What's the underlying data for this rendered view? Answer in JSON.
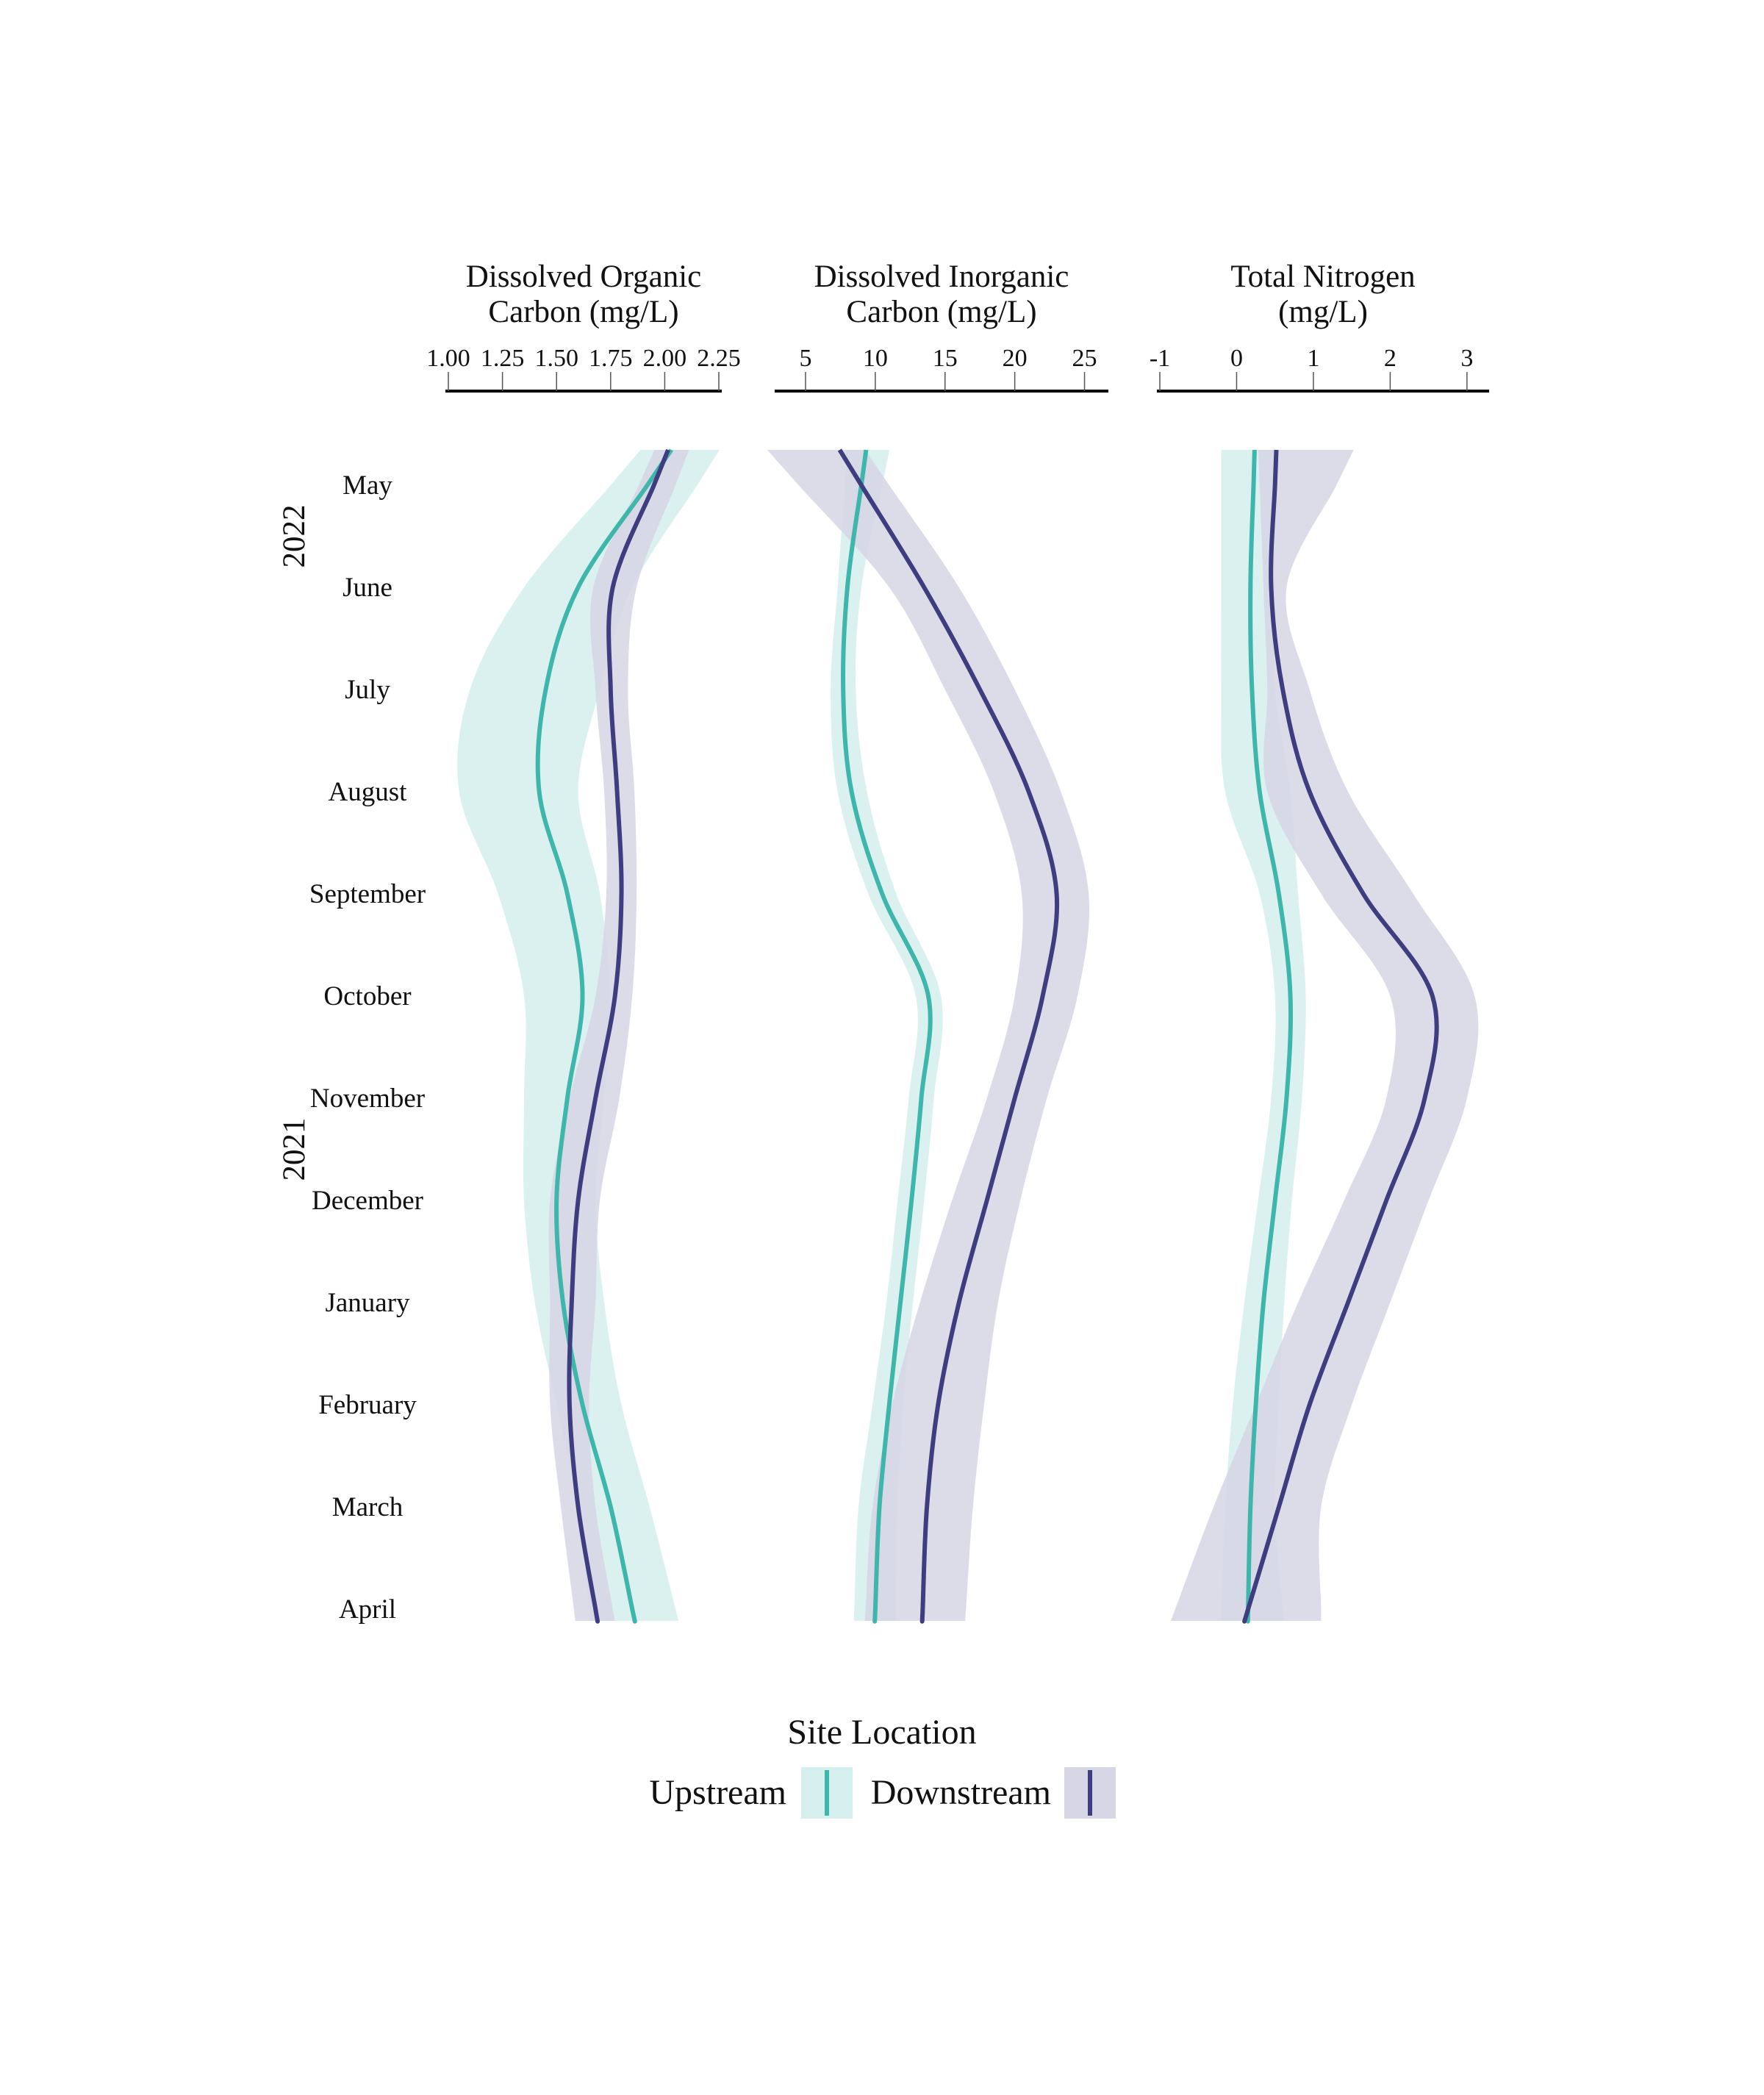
{
  "chart_data": {
    "type": "line",
    "orientation": "vertical-time",
    "y_axis": {
      "months_top_to_bottom": [
        "May",
        "June",
        "July",
        "August",
        "September",
        "October",
        "November",
        "December",
        "January",
        "February",
        "March",
        "April"
      ],
      "year_labels": [
        {
          "label": "2022",
          "from": "May",
          "to": "June"
        },
        {
          "label": "2021",
          "from": "November",
          "to": "December"
        }
      ]
    },
    "legend": {
      "title": "Site Location",
      "placement": "bottom",
      "entries": [
        {
          "key": "upstream",
          "label": "Upstream",
          "line_color": "#3fb6ac",
          "band_color": "#d4efed"
        },
        {
          "key": "downstream",
          "label": "Downstream",
          "line_color": "#3e3d80",
          "band_color": "#d6d6e4"
        }
      ]
    },
    "panels": [
      {
        "id": "doc",
        "title_lines": [
          "Dissolved Organic",
          "Carbon (mg/L)"
        ],
        "xlim": [
          1.0,
          2.25
        ],
        "ticks": [
          1.0,
          1.25,
          1.5,
          1.75,
          2.0,
          2.25
        ],
        "tick_labels": [
          "1.00",
          "1.25",
          "1.50",
          "1.75",
          "2.00",
          "2.25"
        ],
        "series": [
          {
            "key": "upstream",
            "values": [
              1.92,
              1.6,
              1.45,
              1.42,
              1.55,
              1.62,
              1.55,
              1.5,
              1.53,
              1.62,
              1.75,
              1.85
            ],
            "lower": [
              1.75,
              1.35,
              1.1,
              1.05,
              1.23,
              1.35,
              1.35,
              1.35,
              1.4,
              1.5,
              1.6,
              1.65
            ],
            "upper": [
              2.15,
              1.85,
              1.7,
              1.6,
              1.7,
              1.75,
              1.72,
              1.68,
              1.72,
              1.8,
              1.93,
              2.05
            ]
          },
          {
            "key": "downstream",
            "values": [
              1.95,
              1.76,
              1.75,
              1.78,
              1.8,
              1.77,
              1.68,
              1.6,
              1.57,
              1.56,
              1.6,
              1.68
            ],
            "lower": [
              1.88,
              1.67,
              1.68,
              1.72,
              1.73,
              1.68,
              1.56,
              1.47,
              1.47,
              1.47,
              1.52,
              1.58
            ],
            "upper": [
              2.05,
              1.87,
              1.83,
              1.86,
              1.87,
              1.85,
              1.79,
              1.7,
              1.68,
              1.65,
              1.68,
              1.76
            ]
          }
        ]
      },
      {
        "id": "dic",
        "title_lines": [
          "Dissolved Inorganic",
          "Carbon (mg/L)"
        ],
        "xlim": [
          3,
          26.5
        ],
        "ticks": [
          5,
          10,
          15,
          20,
          25
        ],
        "tick_labels": [
          "5",
          "10",
          "15",
          "20",
          "25"
        ],
        "series": [
          {
            "key": "upstream",
            "values": [
              9.0,
              8.0,
              7.7,
              8.3,
              10.5,
              13.8,
              13.3,
              12.6,
              11.8,
              11.0,
              10.3,
              10.0
            ],
            "lower": [
              7.8,
              7.3,
              6.8,
              7.3,
              9.5,
              12.9,
              12.4,
              11.6,
              10.8,
              9.8,
              8.8,
              8.5
            ],
            "upper": [
              10.5,
              9.0,
              8.6,
              9.4,
              11.5,
              14.7,
              14.2,
              13.5,
              12.7,
              12.0,
              11.6,
              11.5
            ]
          },
          {
            "key": "downstream",
            "values": [
              9.0,
              13.5,
              17.5,
              21.0,
              23.0,
              22.0,
              20.0,
              18.0,
              16.0,
              14.5,
              13.7,
              13.4
            ],
            "lower": [
              4.5,
              11.0,
              15.0,
              18.5,
              20.5,
              20.0,
              18.0,
              15.5,
              13.2,
              11.2,
              9.8,
              9.3
            ],
            "upper": [
              11.0,
              16.0,
              20.0,
              23.3,
              25.3,
              24.5,
              22.3,
              20.4,
              18.8,
              17.8,
              17.0,
              16.5
            ]
          }
        ]
      },
      {
        "id": "tn",
        "title_lines": [
          "Total Nitrogen",
          "(mg/L)"
        ],
        "xlim": [
          -1,
          3.25
        ],
        "ticks": [
          -1,
          0,
          1,
          2,
          3
        ],
        "tick_labels": [
          "-1",
          "0",
          "1",
          "2",
          "3"
        ],
        "series": [
          {
            "key": "upstream",
            "values": [
              0.22,
              0.18,
              0.2,
              0.3,
              0.55,
              0.7,
              0.65,
              0.5,
              0.35,
              0.25,
              0.18,
              0.15
            ],
            "lower": [
              -0.2,
              -0.2,
              -0.2,
              -0.15,
              0.3,
              0.5,
              0.45,
              0.28,
              0.1,
              -0.05,
              -0.15,
              -0.2
            ],
            "upper": [
              0.5,
              0.5,
              0.5,
              0.7,
              0.8,
              0.9,
              0.85,
              0.72,
              0.62,
              0.55,
              0.5,
              0.6
            ]
          },
          {
            "key": "downstream",
            "values": [
              0.5,
              0.45,
              0.6,
              0.95,
              1.65,
              2.55,
              2.45,
              1.95,
              1.45,
              0.95,
              0.55,
              0.15
            ],
            "lower": [
              0.3,
              0.35,
              0.4,
              0.4,
              1.1,
              2.0,
              1.95,
              1.4,
              0.8,
              0.25,
              -0.3,
              -0.8
            ],
            "upper": [
              1.3,
              0.65,
              0.95,
              1.45,
              2.3,
              3.1,
              3.0,
              2.5,
              2.0,
              1.5,
              1.1,
              1.1
            ]
          }
        ]
      }
    ]
  }
}
